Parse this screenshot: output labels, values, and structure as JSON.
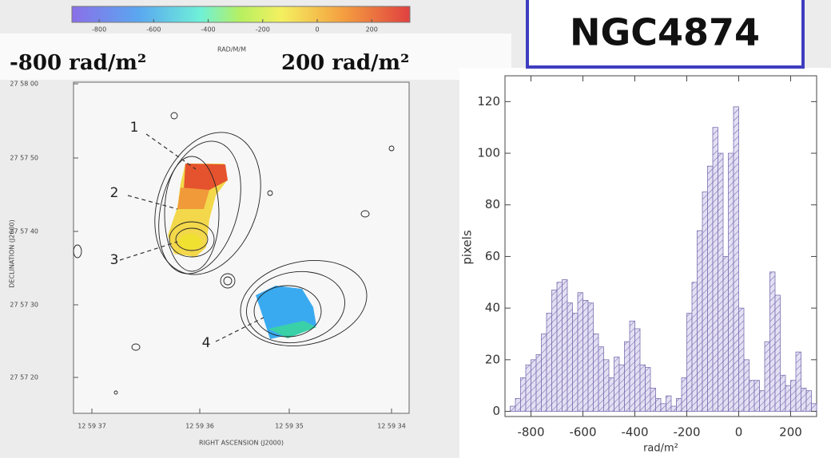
{
  "title": "NGC4874",
  "colorbar": {
    "lim": [
      -900,
      340
    ],
    "ticks": [
      -800,
      -600,
      -400,
      -200,
      0,
      200
    ],
    "label": "RAD/M/M",
    "low_label": "-800 rad/m²",
    "high_label": "200 rad/m²"
  },
  "map": {
    "ylabel": "DECLINATION (J2000)",
    "xlabel": "RIGHT ASCENSION (J2000)",
    "yticks": [
      "27 58 00",
      "27 57 50",
      "27 57 40",
      "27 57 30",
      "27 57 20"
    ],
    "xticks": [
      "12 59 37",
      "12 59 36",
      "12 59 35",
      "12 59 34"
    ],
    "annotations": [
      "1",
      "2",
      "3",
      "4"
    ]
  },
  "chart_data": {
    "type": "histogram",
    "xlabel": "rad/m²",
    "ylabel": "pixels",
    "color": "#7a6fb0",
    "bins": [
      -880,
      -860,
      -840,
      -820,
      -800,
      -780,
      -760,
      -740,
      -720,
      -700,
      -680,
      -660,
      -640,
      -620,
      -600,
      -580,
      -560,
      -540,
      -520,
      -500,
      -480,
      -460,
      -440,
      -420,
      -400,
      -380,
      -360,
      -340,
      -320,
      -300,
      -280,
      -260,
      -240,
      -220,
      -200,
      -180,
      -160,
      -140,
      -120,
      -100,
      -80,
      -60,
      -40,
      -20,
      0,
      20,
      40,
      60,
      80,
      100,
      120,
      140,
      160,
      180,
      200,
      220,
      240,
      260,
      280,
      300
    ],
    "values": [
      2,
      5,
      13,
      18,
      20,
      22,
      30,
      38,
      47,
      50,
      51,
      42,
      38,
      46,
      43,
      42,
      30,
      25,
      20,
      13,
      21,
      18,
      27,
      35,
      32,
      18,
      17,
      9,
      5,
      3,
      6,
      2,
      5,
      13,
      38,
      50,
      70,
      85,
      95,
      110,
      100,
      60,
      100,
      118,
      40,
      20,
      12,
      12,
      8,
      27,
      54,
      45,
      14,
      10,
      12,
      23,
      9,
      8,
      3
    ],
    "xlim": [
      -900,
      300
    ],
    "ylim": [
      -2,
      130
    ],
    "xticks": [
      -800,
      -600,
      -400,
      -200,
      0,
      200
    ],
    "yticks": [
      0,
      20,
      40,
      60,
      80,
      100,
      120
    ]
  }
}
